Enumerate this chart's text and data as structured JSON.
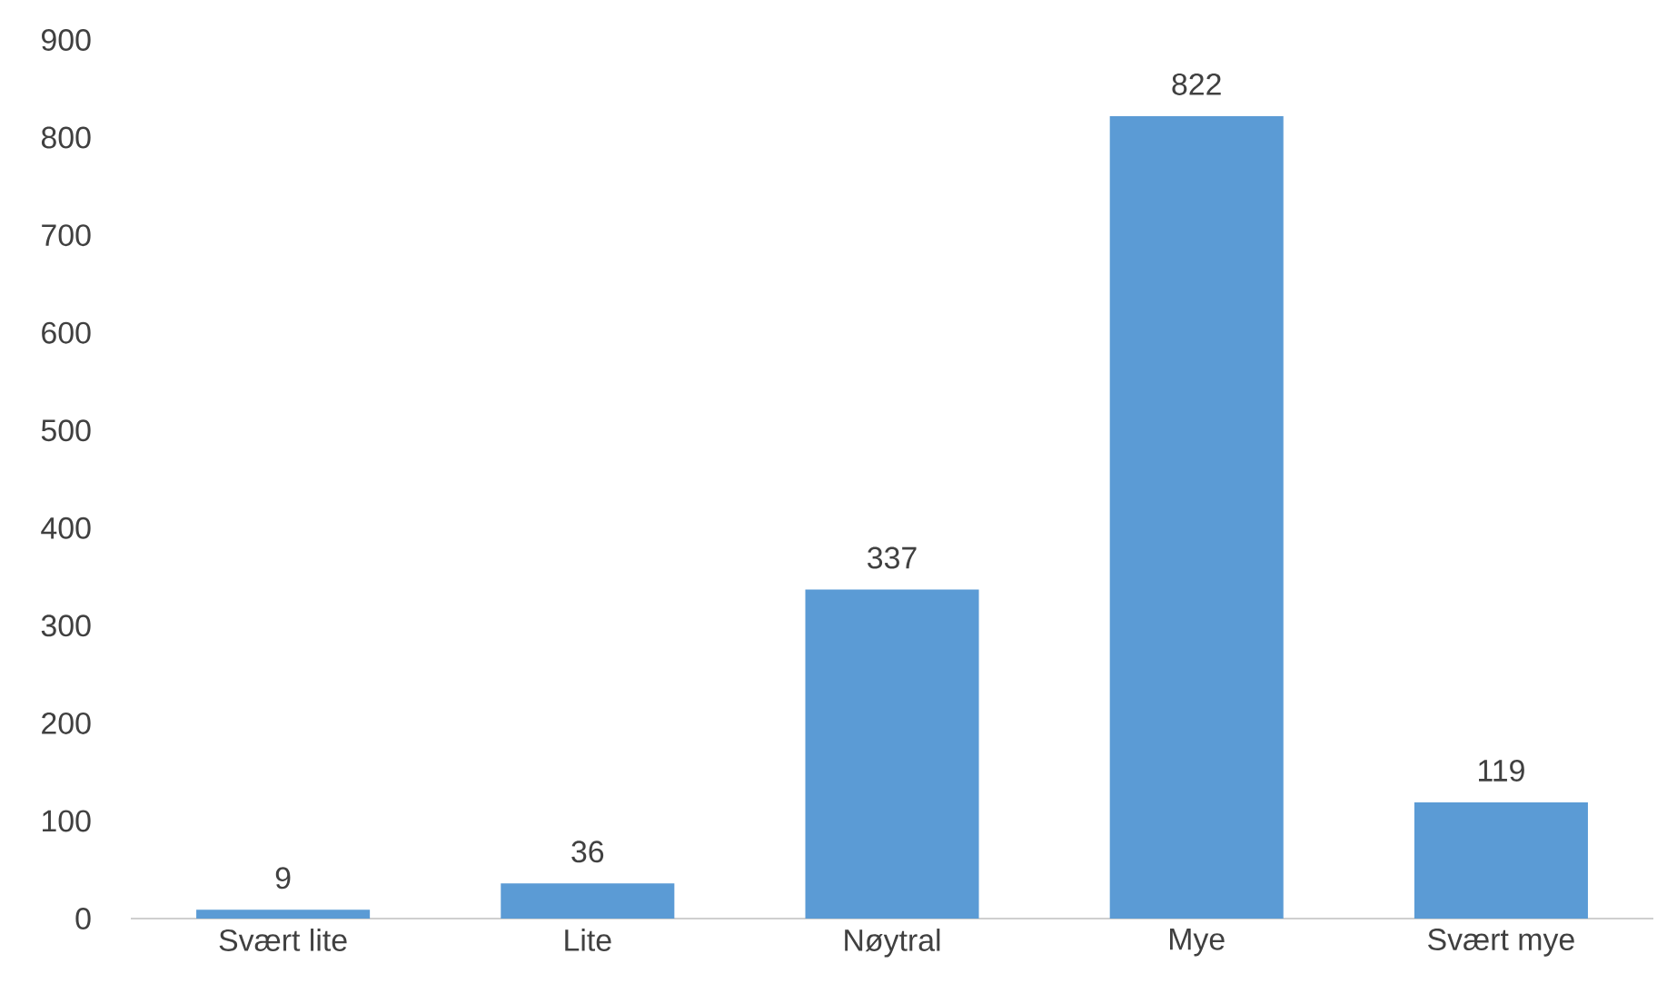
{
  "chart_data": {
    "type": "bar",
    "categories": [
      "Svært lite",
      "Lite",
      "Nøytral",
      "Mye",
      "Svært mye"
    ],
    "values": [
      9,
      36,
      337,
      822,
      119
    ],
    "color": "#5b9bd5",
    "ylim": [
      0,
      900
    ],
    "yticks": [
      0,
      100,
      200,
      300,
      400,
      500,
      600,
      700,
      800,
      900
    ],
    "data_labels": true,
    "grid": false
  }
}
